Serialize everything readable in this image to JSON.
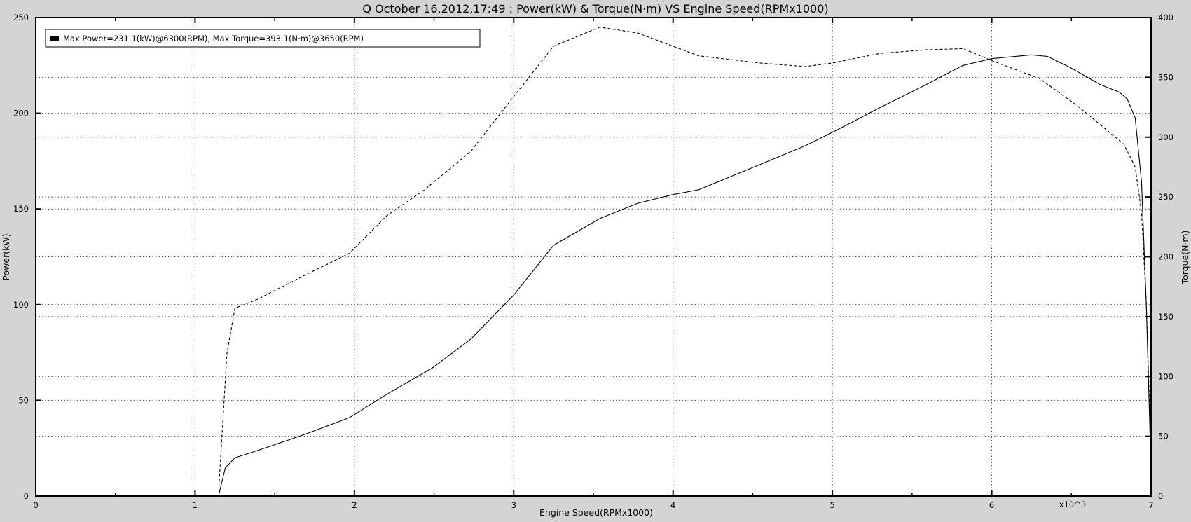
{
  "chart_data": {
    "type": "line",
    "title": "Q October 16,2012,17:49  : Power(kW) & Torque(N·m) VS Engine Speed(RPMx1000)",
    "xlabel": "Engine Speed(RPMx1000)",
    "x_multiplier_label": "x10^3",
    "ylabel_left": "Power(kW)",
    "ylabel_right": "Torque(N·m)",
    "xlim": [
      0,
      7
    ],
    "ylim_left": [
      0,
      250
    ],
    "ylim_right": [
      0,
      400
    ],
    "x_ticks": [
      "0",
      "1",
      "2",
      "3",
      "4",
      "5",
      "6",
      "7"
    ],
    "y_left_ticks": [
      "0",
      "50",
      "100",
      "150",
      "200",
      "250"
    ],
    "y_right_ticks": [
      "0",
      "50",
      "100",
      "150",
      "200",
      "250",
      "300",
      "350",
      "400"
    ],
    "grid": true,
    "legend": {
      "text": "Max Power=231.1(kW)@6300(RPM), Max Torque=393.1(N·m)@3650(RPM)",
      "position": "top-left"
    },
    "series": [
      {
        "axis": "left",
        "style": "solid",
        "x": [
          1.15,
          1.19,
          1.25,
          1.4,
          1.68,
          1.97,
          2.2,
          2.49,
          2.73,
          3.0,
          3.25,
          3.54,
          3.78,
          4.0,
          4.16,
          4.54,
          4.83,
          5.0,
          5.3,
          5.59,
          5.82,
          6.0,
          6.11,
          6.25,
          6.35,
          6.49,
          6.68,
          6.8,
          6.85,
          6.9,
          6.94,
          6.97,
          7.0
        ],
        "y": [
          1,
          14.7,
          20,
          24,
          32,
          41,
          53,
          67,
          82,
          105,
          131,
          145,
          153,
          157.5,
          160,
          173,
          183,
          190,
          203,
          215,
          225,
          228.5,
          229.4,
          230.5,
          229.7,
          224,
          215,
          211,
          207.5,
          197.6,
          164,
          100,
          13
        ]
      },
      {
        "axis": "right",
        "style": "dashed",
        "x": [
          1.15,
          1.2,
          1.25,
          1.4,
          1.68,
          1.97,
          2.2,
          2.44,
          2.73,
          3.0,
          3.25,
          3.54,
          3.78,
          4.0,
          4.16,
          4.54,
          4.83,
          5.0,
          5.3,
          5.59,
          5.82,
          6.0,
          6.3,
          6.54,
          6.83,
          6.9,
          6.94,
          6.97,
          7.0
        ],
        "y": [
          8,
          119,
          157,
          165,
          184,
          203,
          234,
          256,
          288,
          334,
          376,
          392,
          387,
          376,
          368,
          362,
          359,
          362,
          370,
          373,
          374,
          364,
          349,
          326,
          294,
          275,
          237,
          161,
          34
        ]
      }
    ]
  }
}
